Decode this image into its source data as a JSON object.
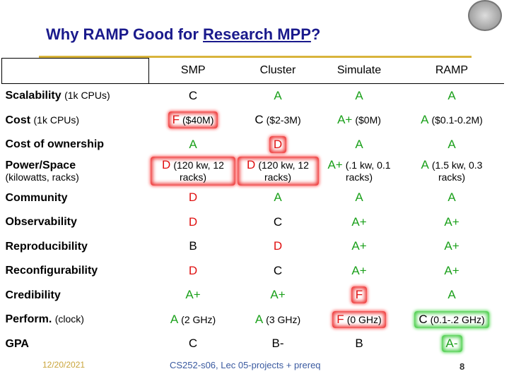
{
  "title": {
    "text": "Why RAMP Good for ",
    "link": "Research MPP",
    "end": "?"
  },
  "table": {
    "columns": [
      "SMP",
      "Cluster",
      "Simulate",
      "RAMP"
    ],
    "rows": [
      {
        "label": "Scalability",
        "sub": "(1k CPUs)",
        "cells": [
          {
            "grade": "C"
          },
          {
            "grade": "A"
          },
          {
            "grade": "A"
          },
          {
            "grade": "A"
          }
        ]
      },
      {
        "label": "Cost",
        "sub": "(1k CPUs)",
        "cells": [
          {
            "grade": "F",
            "note": "($40M)",
            "highlight": "bad"
          },
          {
            "grade": "C",
            "note": "($2-3M)"
          },
          {
            "grade": "A+",
            "note": "($0M)"
          },
          {
            "grade": "A",
            "note": "($0.1-0.2M)"
          }
        ]
      },
      {
        "label": "Cost of ownership",
        "cells": [
          {
            "grade": "A"
          },
          {
            "grade": "D",
            "highlight": "bad"
          },
          {
            "grade": "A"
          },
          {
            "grade": "A"
          }
        ]
      },
      {
        "label": "Power/Space",
        "sub": "(kilowatts, racks)",
        "break": true,
        "cells": [
          {
            "grade": "D",
            "note": "(120 kw, 12 racks)",
            "highlight": "bad"
          },
          {
            "grade": "D",
            "note": "(120 kw, 12 racks)",
            "highlight": "bad"
          },
          {
            "grade": "A+",
            "note": "(.1 kw, 0.1 racks)"
          },
          {
            "grade": "A",
            "note": "(1.5 kw, 0.3 racks)"
          }
        ]
      },
      {
        "label": "Community",
        "cells": [
          {
            "grade": "D"
          },
          {
            "grade": "A"
          },
          {
            "grade": "A"
          },
          {
            "grade": "A"
          }
        ]
      },
      {
        "label": "Observability",
        "cells": [
          {
            "grade": "D"
          },
          {
            "grade": "C"
          },
          {
            "grade": "A+"
          },
          {
            "grade": "A+"
          }
        ]
      },
      {
        "label": "Reproducibility",
        "cells": [
          {
            "grade": "B"
          },
          {
            "grade": "D"
          },
          {
            "grade": "A+"
          },
          {
            "grade": "A+"
          }
        ]
      },
      {
        "label": "Reconfigurability",
        "cells": [
          {
            "grade": "D"
          },
          {
            "grade": "C"
          },
          {
            "grade": "A+"
          },
          {
            "grade": "A+"
          }
        ]
      },
      {
        "label": "Credibility",
        "cells": [
          {
            "grade": "A+"
          },
          {
            "grade": "A+"
          },
          {
            "grade": "F",
            "highlight": "bad"
          },
          {
            "grade": "A"
          }
        ]
      },
      {
        "label": "Perform.",
        "sub": "(clock)",
        "cells": [
          {
            "grade": "A",
            "note": "(2 GHz)"
          },
          {
            "grade": "A",
            "note": "(3 GHz)"
          },
          {
            "grade": "F",
            "note": "(0 GHz)",
            "highlight": "bad"
          },
          {
            "grade": "C",
            "note": "(0.1-.2 GHz)",
            "highlight": "good"
          }
        ]
      },
      {
        "label": "GPA",
        "cells": [
          {
            "grade": "C"
          },
          {
            "grade": "B-"
          },
          {
            "grade": "B"
          },
          {
            "grade": "A-",
            "highlight": "good"
          }
        ]
      }
    ]
  },
  "footer": {
    "date": "12/20/2021",
    "course": "CS252-s06, Lec 05-projects + prereq",
    "page": "8"
  }
}
